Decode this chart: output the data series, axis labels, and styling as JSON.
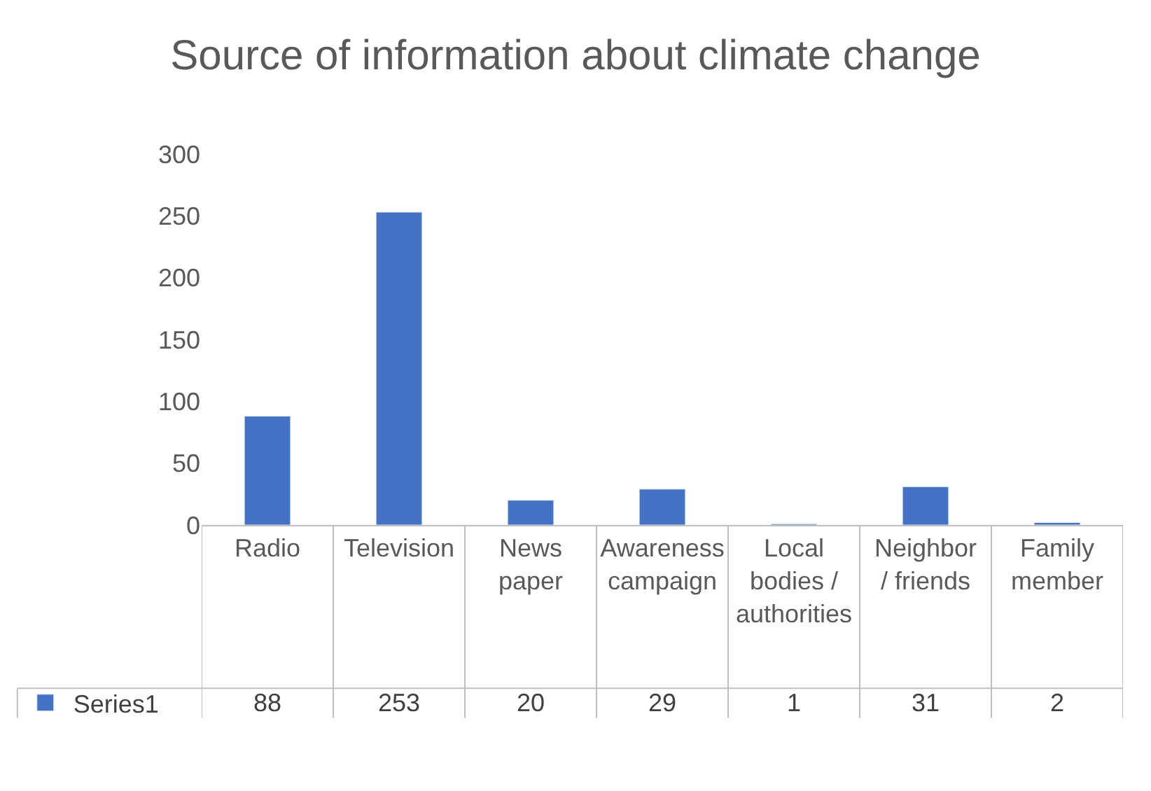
{
  "chart_data": {
    "type": "bar",
    "title": "Source of information about climate change",
    "categories": [
      "Radio",
      "Television",
      "News paper",
      "Awareness campaign",
      "Local bodies / authorities",
      "Neighbor / friends",
      "Family member"
    ],
    "series": [
      {
        "name": "Series1",
        "color": "#4472c4",
        "values": [
          88,
          253,
          20,
          29,
          1,
          31,
          2
        ]
      }
    ],
    "ylim": [
      0,
      300
    ],
    "yticks": [
      0,
      50,
      100,
      150,
      200,
      250,
      300
    ],
    "data_labels": true,
    "legend": "bottom left"
  }
}
